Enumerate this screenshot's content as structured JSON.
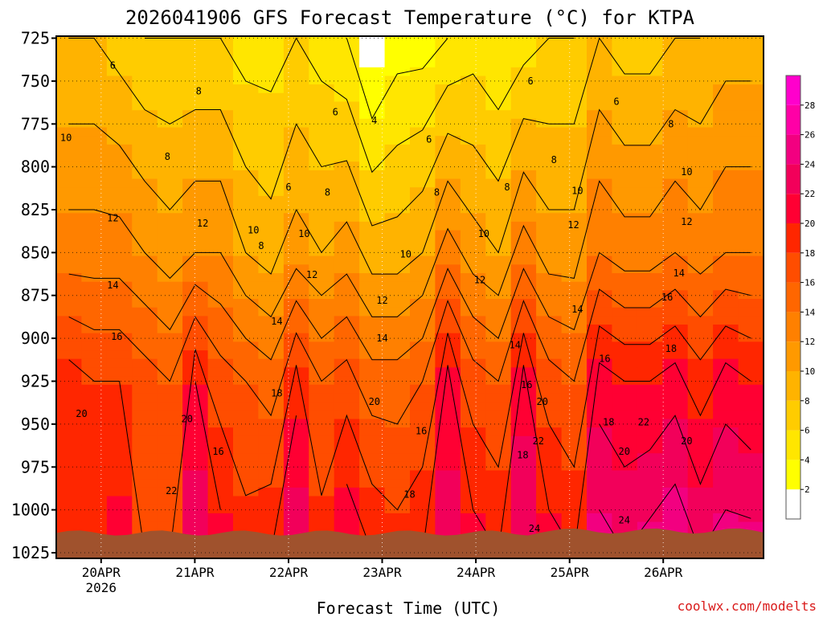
{
  "chart_data": {
    "type": "heatmap",
    "title": "2026041906 GFS Forecast Temperature (°C) for KTPA",
    "xlabel": "Forecast Time (UTC)",
    "ylabel": "",
    "credit": "coolwx.com/modelts",
    "y_ticks": [
      "725",
      "750",
      "775",
      "800",
      "825",
      "850",
      "875",
      "900",
      "925",
      "950",
      "975",
      "1000",
      "1025"
    ],
    "y_values": [
      725,
      750,
      775,
      800,
      825,
      850,
      875,
      900,
      925,
      950,
      975,
      1000,
      1025
    ],
    "ylim": [
      722,
      1027
    ],
    "y_inverted": true,
    "x_ticks": [
      {
        "label": "20APR",
        "sublabel": "2026",
        "hour": 18
      },
      {
        "label": "21APR",
        "sublabel": "",
        "hour": 42
      },
      {
        "label": "22APR",
        "sublabel": "",
        "hour": 66
      },
      {
        "label": "23APR",
        "sublabel": "",
        "hour": 90
      },
      {
        "label": "24APR",
        "sublabel": "",
        "hour": 114
      },
      {
        "label": "25APR",
        "sublabel": "",
        "hour": 138
      },
      {
        "label": "26APR",
        "sublabel": "",
        "hour": 162
      }
    ],
    "xlim_hours": [
      0,
      180
    ],
    "colorbar": {
      "levels": [
        2,
        4,
        6,
        8,
        10,
        12,
        14,
        16,
        18,
        20,
        22,
        24,
        26,
        28
      ],
      "colors": [
        "#ffffff",
        "#ffff00",
        "#ffe600",
        "#ffcc00",
        "#ffb300",
        "#ff9900",
        "#ff8000",
        "#ff6600",
        "#ff4d00",
        "#ff2600",
        "#ff0033",
        "#f2005a",
        "#f20080",
        "#ff00a6",
        "#ff00cc"
      ],
      "max": 30
    },
    "series": [
      {
        "name": "Surface temperature",
        "values": [
          20,
          19,
          21,
          18,
          18,
          24,
          21,
          19,
          20,
          24,
          19,
          22,
          20,
          19,
          20,
          23,
          21,
          20,
          24,
          21,
          20,
          25,
          24,
          25,
          26,
          24,
          25,
          25
        ]
      },
      {
        "name": "Temperature at 925 hPa",
        "values": [
          19,
          18,
          18,
          17,
          16,
          20,
          17,
          16,
          15,
          19,
          16,
          17,
          15,
          15,
          16,
          21,
          17,
          16,
          21,
          17,
          16,
          21,
          20,
          20,
          21,
          19,
          21,
          20
        ]
      },
      {
        "name": "Temperature at 850 hPa",
        "values": [
          13,
          13,
          13,
          12,
          11,
          12,
          12,
          10,
          9,
          11,
          10,
          11,
          9,
          9,
          10,
          13,
          11,
          10,
          13,
          11,
          11,
          14,
          13,
          13,
          14,
          13,
          14,
          14
        ]
      },
      {
        "name": "Temperature at 725 hPa",
        "values": [
          8,
          8,
          7,
          6,
          6,
          6,
          6,
          5,
          5,
          6,
          5,
          4,
          1,
          3,
          3,
          4,
          5,
          4,
          5,
          6,
          6,
          8,
          7,
          7,
          8,
          8,
          9,
          9
        ]
      }
    ],
    "contour_labels": [
      {
        "text": "6",
        "hour": 21,
        "hpa": 741
      },
      {
        "text": "8",
        "hour": 43,
        "hpa": 756
      },
      {
        "text": "10",
        "hour": 9,
        "hpa": 783
      },
      {
        "text": "8",
        "hour": 35,
        "hpa": 794
      },
      {
        "text": "6",
        "hour": 78,
        "hpa": 768
      },
      {
        "text": "4",
        "hour": 88,
        "hpa": 773
      },
      {
        "text": "6",
        "hour": 102,
        "hpa": 784
      },
      {
        "text": "6",
        "hour": 128,
        "hpa": 750
      },
      {
        "text": "6",
        "hour": 150,
        "hpa": 762
      },
      {
        "text": "8",
        "hour": 164,
        "hpa": 775
      },
      {
        "text": "8",
        "hour": 134,
        "hpa": 796
      },
      {
        "text": "10",
        "hour": 168,
        "hpa": 803
      },
      {
        "text": "6",
        "hour": 66,
        "hpa": 812
      },
      {
        "text": "8",
        "hour": 76,
        "hpa": 815
      },
      {
        "text": "8",
        "hour": 104,
        "hpa": 815
      },
      {
        "text": "8",
        "hour": 122,
        "hpa": 812
      },
      {
        "text": "10",
        "hour": 140,
        "hpa": 814
      },
      {
        "text": "12",
        "hour": 21,
        "hpa": 830
      },
      {
        "text": "12",
        "hour": 44,
        "hpa": 833
      },
      {
        "text": "10",
        "hour": 57,
        "hpa": 837
      },
      {
        "text": "8",
        "hour": 59,
        "hpa": 846
      },
      {
        "text": "10",
        "hour": 70,
        "hpa": 839
      },
      {
        "text": "10",
        "hour": 116,
        "hpa": 839
      },
      {
        "text": "12",
        "hour": 139,
        "hpa": 834
      },
      {
        "text": "12",
        "hour": 168,
        "hpa": 832
      },
      {
        "text": "10",
        "hour": 96,
        "hpa": 851
      },
      {
        "text": "12",
        "hour": 72,
        "hpa": 863
      },
      {
        "text": "12",
        "hour": 115,
        "hpa": 866
      },
      {
        "text": "14",
        "hour": 21,
        "hpa": 869
      },
      {
        "text": "14",
        "hour": 166,
        "hpa": 862
      },
      {
        "text": "16",
        "hour": 4,
        "hpa": 885
      },
      {
        "text": "16",
        "hour": 163,
        "hpa": 876
      },
      {
        "text": "14",
        "hour": 140,
        "hpa": 883
      },
      {
        "text": "12",
        "hour": 90,
        "hpa": 878
      },
      {
        "text": "14",
        "hour": 63,
        "hpa": 890
      },
      {
        "text": "16",
        "hour": 22,
        "hpa": 899
      },
      {
        "text": "14",
        "hour": 90,
        "hpa": 900
      },
      {
        "text": "14",
        "hour": 124,
        "hpa": 904
      },
      {
        "text": "18",
        "hour": 164,
        "hpa": 906
      },
      {
        "text": "16",
        "hour": 147,
        "hpa": 912
      },
      {
        "text": "16",
        "hour": 127,
        "hpa": 927
      },
      {
        "text": "18",
        "hour": 63,
        "hpa": 932
      },
      {
        "text": "20",
        "hour": 88,
        "hpa": 937
      },
      {
        "text": "20",
        "hour": 131,
        "hpa": 937
      },
      {
        "text": "20",
        "hour": 13,
        "hpa": 944
      },
      {
        "text": "20",
        "hour": 40,
        "hpa": 947
      },
      {
        "text": "18",
        "hour": 148,
        "hpa": 949
      },
      {
        "text": "22",
        "hour": 157,
        "hpa": 949
      },
      {
        "text": "16",
        "hour": 100,
        "hpa": 954
      },
      {
        "text": "22",
        "hour": 130,
        "hpa": 960
      },
      {
        "text": "20",
        "hour": 168,
        "hpa": 960
      },
      {
        "text": "16",
        "hour": 48,
        "hpa": 966
      },
      {
        "text": "18",
        "hour": 126,
        "hpa": 968
      },
      {
        "text": "20",
        "hour": 152,
        "hpa": 966
      },
      {
        "text": "22",
        "hour": 36,
        "hpa": 989
      },
      {
        "text": "18",
        "hour": 97,
        "hpa": 991
      },
      {
        "text": "24",
        "hour": 152,
        "hpa": 1006
      },
      {
        "text": "24",
        "hour": 129,
        "hpa": 1011
      }
    ]
  }
}
